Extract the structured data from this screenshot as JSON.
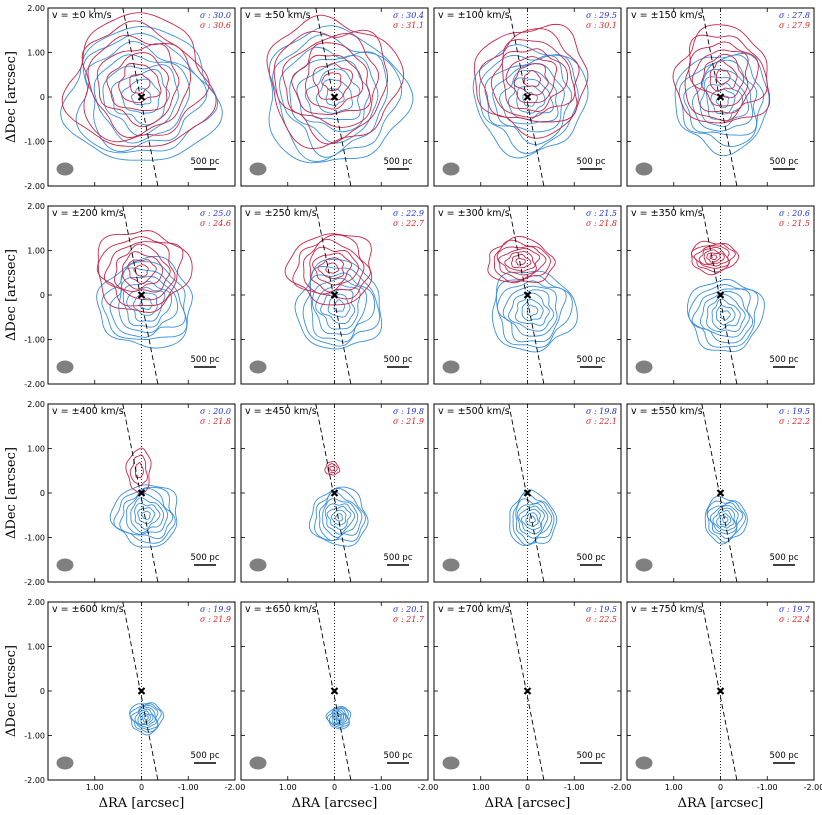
{
  "chart_data": {
    "type": "contour-grid",
    "xlabel": "ΔRA [arcsec]",
    "ylabel": "ΔDec [arcsec]",
    "xlim": [
      2.0,
      -2.0
    ],
    "ylim": [
      -2.0,
      2.0
    ],
    "x_ticks": [
      {
        "value": 1.0,
        "label": "1.00"
      },
      {
        "value": 0.0,
        "label": "0"
      },
      {
        "value": -1.0,
        "label": "-1.00"
      },
      {
        "value": -2.0,
        "label": "-2.00"
      }
    ],
    "y_ticks": [
      {
        "value": 2.0,
        "label": "2.00"
      },
      {
        "value": 1.0,
        "label": "1.00"
      },
      {
        "value": 0.0,
        "label": "0"
      },
      {
        "value": -1.0,
        "label": "-1.00"
      },
      {
        "value": -2.0,
        "label": "-2.00"
      }
    ],
    "scale_bar_label": "500 pc",
    "nucleus": {
      "x": 0.0,
      "y": 0.0
    },
    "major_axis_line": {
      "top": {
        "x": 0.4,
        "y": 2.0
      },
      "bottom": {
        "x": -0.35,
        "y": -2.0
      }
    },
    "colors": {
      "blue": "#3a8fd9",
      "red": "#c8264a",
      "sigma_blue": "#1f2fd0",
      "sigma_red": "#d21f1f",
      "beam": "#808080"
    },
    "series_names": [
      "blueshifted",
      "redshifted"
    ],
    "panels": [
      {
        "velocity": "v = ±0 km/s",
        "v": 0,
        "sigma_blue": "σ : 30.0",
        "sigma_red": "σ : 30.6",
        "blue_center": [
          0.0,
          0.0
        ],
        "blue_size": [
          1.6,
          1.5
        ],
        "red_center": [
          0.05,
          0.3
        ],
        "red_size": [
          1.5,
          1.5
        ]
      },
      {
        "velocity": "v = ±50 km/s",
        "v": 50,
        "sigma_blue": "σ : 30.4",
        "sigma_red": "σ : 31.1",
        "blue_center": [
          0.0,
          0.0
        ],
        "blue_size": [
          1.5,
          1.5
        ],
        "red_center": [
          0.05,
          0.35
        ],
        "red_size": [
          1.4,
          1.4
        ]
      },
      {
        "velocity": "v = ±100 km/s",
        "v": 100,
        "sigma_blue": "σ : 29.5",
        "sigma_red": "σ : 30.1",
        "blue_center": [
          -0.05,
          -0.05
        ],
        "blue_size": [
          1.2,
          1.2
        ],
        "red_center": [
          -0.1,
          0.4
        ],
        "red_size": [
          1.2,
          1.2
        ]
      },
      {
        "velocity": "v = ±150 km/s",
        "v": 150,
        "sigma_blue": "σ : 27.8",
        "sigma_red": "σ : 27.9",
        "blue_center": [
          -0.05,
          -0.1
        ],
        "blue_size": [
          1.0,
          1.1
        ],
        "red_center": [
          -0.05,
          0.45
        ],
        "red_size": [
          1.0,
          1.1
        ]
      },
      {
        "velocity": "v = ±200 km/s",
        "v": 200,
        "sigma_blue": "σ : 25.0",
        "sigma_red": "σ : 24.6",
        "blue_center": [
          -0.1,
          -0.2
        ],
        "blue_size": [
          1.0,
          1.0
        ],
        "red_center": [
          0.0,
          0.55
        ],
        "red_size": [
          1.0,
          0.9
        ]
      },
      {
        "velocity": "v = ±250 km/s",
        "v": 250,
        "sigma_blue": "σ : 22.9",
        "sigma_red": "σ : 22.7",
        "blue_center": [
          -0.1,
          -0.25
        ],
        "blue_size": [
          0.9,
          1.0
        ],
        "red_center": [
          0.05,
          0.6
        ],
        "red_size": [
          0.9,
          0.8
        ]
      },
      {
        "velocity": "v = ±300 km/s",
        "v": 300,
        "sigma_blue": "σ : 21.5",
        "sigma_red": "σ : 21.8",
        "blue_center": [
          -0.1,
          -0.35
        ],
        "blue_size": [
          0.9,
          0.9
        ],
        "red_center": [
          0.15,
          0.75
        ],
        "red_size": [
          0.7,
          0.5
        ]
      },
      {
        "velocity": "v = ±350 km/s",
        "v": 350,
        "sigma_blue": "σ : 20.6",
        "sigma_red": "σ : 21.5",
        "blue_center": [
          -0.1,
          -0.45
        ],
        "blue_size": [
          0.8,
          0.8
        ],
        "red_center": [
          0.15,
          0.85
        ],
        "red_size": [
          0.5,
          0.35
        ]
      },
      {
        "velocity": "v = ±400 km/s",
        "v": 400,
        "sigma_blue": "σ : 20.0",
        "sigma_red": "σ : 21.8",
        "blue_center": [
          -0.1,
          -0.5
        ],
        "blue_size": [
          0.7,
          0.7
        ],
        "red_center": [
          0.05,
          0.5
        ],
        "red_size": [
          0.25,
          0.5
        ]
      },
      {
        "velocity": "v = ±450 km/s",
        "v": 450,
        "sigma_blue": "σ : 19.8",
        "sigma_red": "σ : 21.9",
        "blue_center": [
          -0.1,
          -0.55
        ],
        "blue_size": [
          0.6,
          0.65
        ],
        "red_center": [
          0.05,
          0.55
        ],
        "red_size": [
          0.15,
          0.15
        ]
      },
      {
        "velocity": "v = ±500 km/s",
        "v": 500,
        "sigma_blue": "σ : 19.8",
        "sigma_red": "σ : 22.1",
        "blue_center": [
          -0.1,
          -0.6
        ],
        "blue_size": [
          0.5,
          0.6
        ],
        "red_center": null,
        "red_size": null
      },
      {
        "velocity": "v = ±550 km/s",
        "v": 550,
        "sigma_blue": "σ : 19.5",
        "sigma_red": "σ : 22.2",
        "blue_center": [
          -0.1,
          -0.6
        ],
        "blue_size": [
          0.45,
          0.5
        ],
        "red_center": null,
        "red_size": null
      },
      {
        "velocity": "v = ±600 km/s",
        "v": 600,
        "sigma_blue": "σ : 19.9",
        "sigma_red": "σ : 21.9",
        "blue_center": [
          -0.1,
          -0.6
        ],
        "blue_size": [
          0.35,
          0.35
        ],
        "red_center": null,
        "red_size": null
      },
      {
        "velocity": "v = ±650 km/s",
        "v": 650,
        "sigma_blue": "σ : 20.1",
        "sigma_red": "σ : 21.7",
        "blue_center": [
          -0.1,
          -0.6
        ],
        "blue_size": [
          0.25,
          0.25
        ],
        "red_center": null,
        "red_size": null
      },
      {
        "velocity": "v = ±700 km/s",
        "v": 700,
        "sigma_blue": "σ : 19.5",
        "sigma_red": "σ : 22.5",
        "blue_center": null,
        "blue_size": null,
        "red_center": null,
        "red_size": null
      },
      {
        "velocity": "v = ±750 km/s",
        "v": 750,
        "sigma_blue": "σ : 19.7",
        "sigma_red": "σ : 22.4",
        "blue_center": null,
        "blue_size": null,
        "red_center": null,
        "red_size": null
      }
    ]
  }
}
